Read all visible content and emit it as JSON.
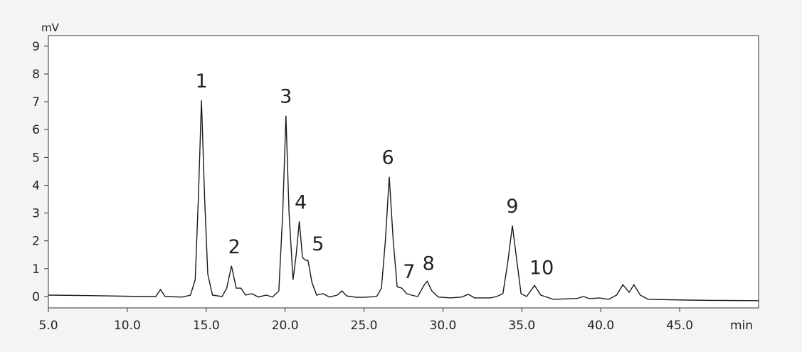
{
  "chart_data": {
    "type": "line",
    "y_label": "mV",
    "x_label": "min",
    "x": [
      5.0,
      8.0,
      11.0,
      11.8,
      12.1,
      12.4,
      13.5,
      14.0,
      14.3,
      14.5,
      14.7,
      14.9,
      15.1,
      15.4,
      16.0,
      16.3,
      16.6,
      16.9,
      17.2,
      17.5,
      17.9,
      18.3,
      18.8,
      19.2,
      19.6,
      19.85,
      20.05,
      20.25,
      20.5,
      20.7,
      20.9,
      21.1,
      21.3,
      21.45,
      21.7,
      22.0,
      22.4,
      22.8,
      23.3,
      23.6,
      23.9,
      24.5,
      25.0,
      25.8,
      26.1,
      26.35,
      26.6,
      26.85,
      27.1,
      27.4,
      27.7,
      28.0,
      28.4,
      28.8,
      29.0,
      29.3,
      29.7,
      30.5,
      31.2,
      31.6,
      32.0,
      33.0,
      33.4,
      33.8,
      34.1,
      34.4,
      34.7,
      34.95,
      35.3,
      35.8,
      36.2,
      37.0,
      38.5,
      38.9,
      39.3,
      39.9,
      40.5,
      41.0,
      41.4,
      41.8,
      42.1,
      42.5,
      43.0,
      45.5,
      47.0,
      50.0
    ],
    "series": [
      {
        "color": "#1a1a1a",
        "values": [
          0.05,
          0.03,
          0.0,
          0.0,
          0.25,
          0.0,
          -0.02,
          0.05,
          0.6,
          3.5,
          7.05,
          3.5,
          0.8,
          0.05,
          0.0,
          0.3,
          1.1,
          0.3,
          0.3,
          0.05,
          0.1,
          -0.02,
          0.05,
          -0.02,
          0.2,
          3.0,
          6.5,
          3.0,
          0.6,
          1.5,
          2.7,
          1.4,
          1.3,
          1.3,
          0.5,
          0.05,
          0.1,
          -0.02,
          0.05,
          0.2,
          0.02,
          -0.03,
          -0.03,
          0.0,
          0.3,
          2.0,
          4.3,
          2.0,
          0.35,
          0.3,
          0.1,
          0.05,
          0.0,
          0.4,
          0.55,
          0.2,
          -0.02,
          -0.05,
          -0.02,
          0.08,
          -0.05,
          -0.05,
          0.0,
          0.1,
          1.2,
          2.55,
          1.2,
          0.1,
          0.0,
          0.4,
          0.05,
          -0.1,
          -0.07,
          0.0,
          -0.08,
          -0.05,
          -0.1,
          0.05,
          0.42,
          0.15,
          0.42,
          0.05,
          -0.1,
          -0.13,
          -0.14,
          -0.15
        ]
      }
    ],
    "peaks": [
      {
        "label": "1",
        "time": 14.7,
        "height": 7.05
      },
      {
        "label": "2",
        "time": 16.6,
        "height": 1.1
      },
      {
        "label": "3",
        "time": 20.05,
        "height": 6.5
      },
      {
        "label": "4",
        "time": 20.9,
        "height": 2.7
      },
      {
        "label": "5",
        "time": 21.45,
        "height": 1.3
      },
      {
        "label": "6",
        "time": 26.6,
        "height": 4.3
      },
      {
        "label": "7",
        "time": 27.4,
        "height": 0.3
      },
      {
        "label": "8",
        "time": 29.0,
        "height": 0.55
      },
      {
        "label": "9",
        "time": 34.4,
        "height": 2.55
      },
      {
        "label": "10",
        "time": 35.8,
        "height": 0.4
      }
    ],
    "xlim": [
      5,
      50
    ],
    "ylim": [
      -0.41,
      9.38
    ],
    "xticks": [
      {
        "value": 5,
        "label": "5.0"
      },
      {
        "value": 10,
        "label": "10.0"
      },
      {
        "value": 15,
        "label": "15.0"
      },
      {
        "value": 20,
        "label": "20.0"
      },
      {
        "value": 25,
        "label": "25.0"
      },
      {
        "value": 30,
        "label": "30.0"
      },
      {
        "value": 35,
        "label": "35.0"
      },
      {
        "value": 40,
        "label": "40.0"
      },
      {
        "value": 45,
        "label": "45.0"
      }
    ],
    "yticks": [
      0,
      1,
      2,
      3,
      4,
      5,
      6,
      7,
      8,
      9
    ]
  }
}
